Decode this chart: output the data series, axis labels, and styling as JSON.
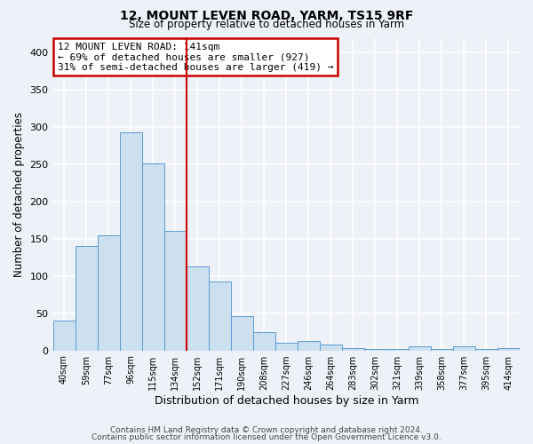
{
  "title1": "12, MOUNT LEVEN ROAD, YARM, TS15 9RF",
  "title2": "Size of property relative to detached houses in Yarm",
  "xlabel": "Distribution of detached houses by size in Yarm",
  "ylabel": "Number of detached properties",
  "bar_labels": [
    "40sqm",
    "59sqm",
    "77sqm",
    "96sqm",
    "115sqm",
    "134sqm",
    "152sqm",
    "171sqm",
    "190sqm",
    "208sqm",
    "227sqm",
    "246sqm",
    "264sqm",
    "283sqm",
    "302sqm",
    "321sqm",
    "339sqm",
    "358sqm",
    "377sqm",
    "395sqm",
    "414sqm"
  ],
  "bar_values": [
    40,
    140,
    155,
    293,
    251,
    160,
    113,
    92,
    46,
    25,
    10,
    13,
    8,
    3,
    2,
    2,
    5,
    2,
    5,
    2,
    3
  ],
  "bar_color": "#cce0f0",
  "bar_edge_color": "#5b9bd5",
  "vline_x": 5.5,
  "vline_color": "#cc0000",
  "annotation_title": "12 MOUNT LEVEN ROAD: 141sqm",
  "annotation_line1": "← 69% of detached houses are smaller (927)",
  "annotation_line2": "31% of semi-detached houses are larger (419) →",
  "annotation_box_color": "#ffffff",
  "annotation_box_edge": "#cc0000",
  "ylim": [
    0,
    420
  ],
  "yticks": [
    0,
    50,
    100,
    150,
    200,
    250,
    300,
    350,
    400
  ],
  "footer1": "Contains HM Land Registry data © Crown copyright and database right 2024.",
  "footer2": "Contains public sector information licensed under the Open Government Licence v3.0.",
  "background_color": "#eef2f8"
}
